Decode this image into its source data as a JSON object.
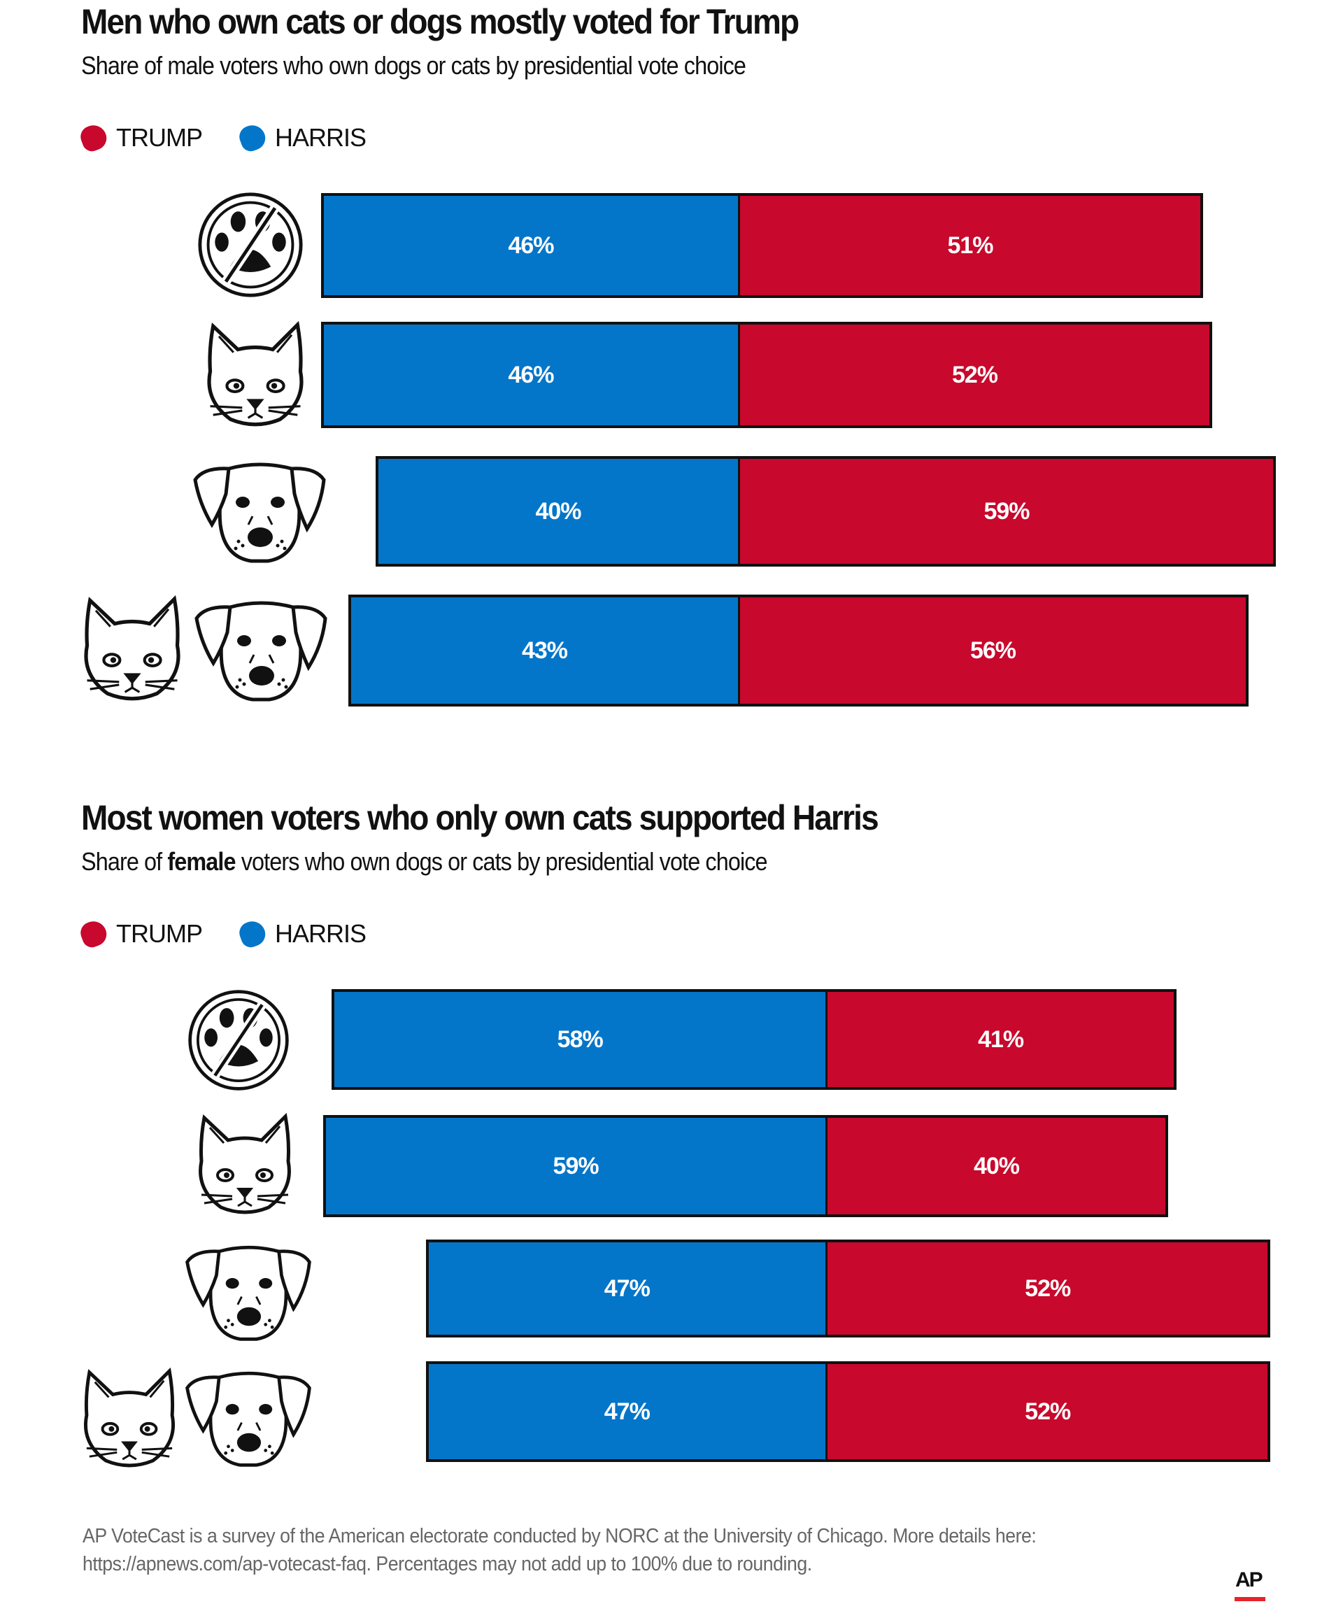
{
  "colors": {
    "trump": "#c8082c",
    "harris": "#0476c9",
    "outline": "#111111"
  },
  "legend": [
    {
      "label": "TRUMP",
      "color": "#c8082c"
    },
    {
      "label": "HARRIS",
      "color": "#0476c9"
    }
  ],
  "chart_data": [
    {
      "type": "bar",
      "orientation": "horizontal-diverging-stacked",
      "title": "Men who own cats or dogs mostly voted for Trump",
      "subtitle": "Share of male voters who own dogs or cats by presidential vote choice",
      "categories_icons": [
        "no-pets-icon",
        "cat-icon",
        "dog-icon",
        "cat-and-dog-icon"
      ],
      "series": [
        {
          "name": "HARRIS",
          "values": [
            46,
            46,
            40,
            43
          ],
          "labels": [
            "46%",
            "46%",
            "40%",
            "43%"
          ]
        },
        {
          "name": "TRUMP",
          "values": [
            51,
            52,
            59,
            56
          ],
          "labels": [
            "51%",
            "52%",
            "59%",
            "56%"
          ]
        }
      ]
    },
    {
      "type": "bar",
      "orientation": "horizontal-diverging-stacked",
      "title": "Most women voters who only own cats supported Harris",
      "subtitle_parts": [
        "Share of ",
        "female",
        " voters who own dogs or cats by presidential vote choice"
      ],
      "categories_icons": [
        "no-pets-icon",
        "cat-icon",
        "dog-icon",
        "cat-and-dog-icon"
      ],
      "series": [
        {
          "name": "HARRIS",
          "values": [
            58,
            59,
            47,
            47
          ],
          "labels": [
            "58%",
            "59%",
            "47%",
            "47%"
          ]
        },
        {
          "name": "TRUMP",
          "values": [
            41,
            40,
            52,
            52
          ],
          "labels": [
            "41%",
            "40%",
            "52%",
            "52%"
          ]
        }
      ]
    }
  ],
  "footer": {
    "line1": "AP VoteCast is a survey of the American electorate conducted by NORC at the University of Chicago. More details here:",
    "line2": "https://apnews.com/ap-votecast-faq. Percentages may not add up to 100% due to rounding."
  },
  "logo": "AP"
}
